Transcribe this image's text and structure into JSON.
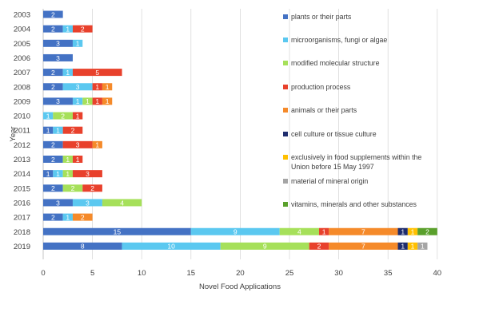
{
  "chart_data": {
    "type": "bar",
    "orientation": "horizontal",
    "stacked": true,
    "title": "",
    "xlabel": "Novel Food Applications",
    "ylabel": "Year",
    "xlim": [
      0,
      40
    ],
    "xticks": [
      "0",
      "5",
      "10",
      "15",
      "20",
      "25",
      "30",
      "35",
      "40"
    ],
    "grid": true,
    "legend_position": "right",
    "categories": [
      "2003",
      "2004",
      "2005",
      "2006",
      "2007",
      "2008",
      "2009",
      "2010",
      "2011",
      "2012",
      "2013",
      "2014",
      "2015",
      "2016",
      "2017",
      "2018",
      "2019"
    ],
    "series": [
      {
        "name": "plants or their parts",
        "color": "#4472C4",
        "values": [
          2,
          2,
          3,
          3,
          2,
          2,
          3,
          0,
          1,
          2,
          2,
          1,
          2,
          3,
          2,
          15,
          8
        ],
        "labels": [
          "2",
          "2",
          "3",
          "3",
          "2",
          "2",
          "3",
          "",
          "1",
          "2",
          "2",
          "1",
          "2",
          "3",
          "2",
          "15",
          "8"
        ]
      },
      {
        "name": "microorganisms, fungi or algae",
        "color": "#5BC8F0",
        "values": [
          0,
          1,
          1,
          0,
          1,
          3,
          1,
          1,
          1,
          0,
          0,
          1,
          0,
          3,
          1,
          9,
          10
        ],
        "labels": [
          "",
          "1",
          "1",
          "",
          "1",
          "3",
          "1",
          "1",
          "1",
          "",
          "",
          "1",
          "",
          "3",
          "1",
          "9",
          "10"
        ]
      },
      {
        "name": "modified molecular structure",
        "color": "#A6E05A",
        "values": [
          0,
          0,
          0,
          0,
          0,
          0,
          1,
          2,
          0,
          0,
          1,
          1,
          2,
          4,
          0,
          4,
          9
        ],
        "labels": [
          "",
          "",
          "",
          "",
          "",
          "",
          "1",
          "2",
          "",
          "",
          "1",
          "1",
          "2",
          "4",
          "",
          "4",
          "9"
        ]
      },
      {
        "name": "production process",
        "color": "#E8412C",
        "values": [
          0,
          2,
          0,
          0,
          5,
          1,
          1,
          1,
          2,
          3,
          1,
          3,
          2,
          0,
          0,
          1,
          2
        ],
        "labels": [
          "",
          "2",
          "",
          "",
          "5",
          "1",
          "1",
          "1",
          "2",
          "3",
          "1",
          "3",
          "2",
          "",
          "",
          "1",
          "2"
        ]
      },
      {
        "name": "animals or their parts",
        "color": "#F58A2A",
        "values": [
          0,
          0,
          0,
          0,
          0,
          1,
          1,
          0,
          0,
          1,
          0,
          0,
          0,
          0,
          2,
          7,
          7
        ],
        "labels": [
          "",
          "",
          "",
          "",
          "",
          "1",
          "1",
          "",
          "",
          "1",
          "",
          "",
          "",
          "",
          "2",
          "7",
          "7"
        ]
      },
      {
        "name": "cell culture or tissue culture",
        "color": "#1F2D6E",
        "values": [
          0,
          0,
          0,
          0,
          0,
          0,
          0,
          0,
          0,
          0,
          0,
          0,
          0,
          0,
          0,
          1,
          1
        ],
        "labels": [
          "",
          "",
          "",
          "",
          "",
          "",
          "",
          "",
          "",
          "",
          "",
          "",
          "",
          "",
          "",
          "1",
          "1"
        ]
      },
      {
        "name": "exclusively in food supplements within the Union before 15 May 1997",
        "color": "#FFC000",
        "values": [
          0,
          0,
          0,
          0,
          0,
          0,
          0,
          0,
          0,
          0,
          0,
          0,
          0,
          0,
          0,
          1,
          1
        ],
        "labels": [
          "",
          "",
          "",
          "",
          "",
          "",
          "",
          "",
          "",
          "",
          "",
          "",
          "",
          "",
          "",
          "1",
          "1"
        ]
      },
      {
        "name": "material of mineral origin",
        "color": "#A5A5A5",
        "values": [
          0,
          0,
          0,
          0,
          0,
          0,
          0,
          0,
          0,
          0,
          0,
          0,
          0,
          0,
          0,
          0,
          1
        ],
        "labels": [
          "",
          "",
          "",
          "",
          "",
          "",
          "",
          "",
          "",
          "",
          "",
          "",
          "",
          "",
          "",
          "",
          "1"
        ]
      },
      {
        "name": "vitamins, minerals and other substances",
        "color": "#5AA02C",
        "values": [
          0,
          0,
          0,
          0,
          0,
          0,
          0,
          0,
          0,
          0,
          0,
          0,
          0,
          0,
          0,
          2,
          0
        ],
        "labels": [
          "",
          "",
          "",
          "",
          "",
          "",
          "",
          "",
          "",
          "",
          "",
          "",
          "",
          "",
          "",
          "2",
          ""
        ]
      }
    ]
  }
}
